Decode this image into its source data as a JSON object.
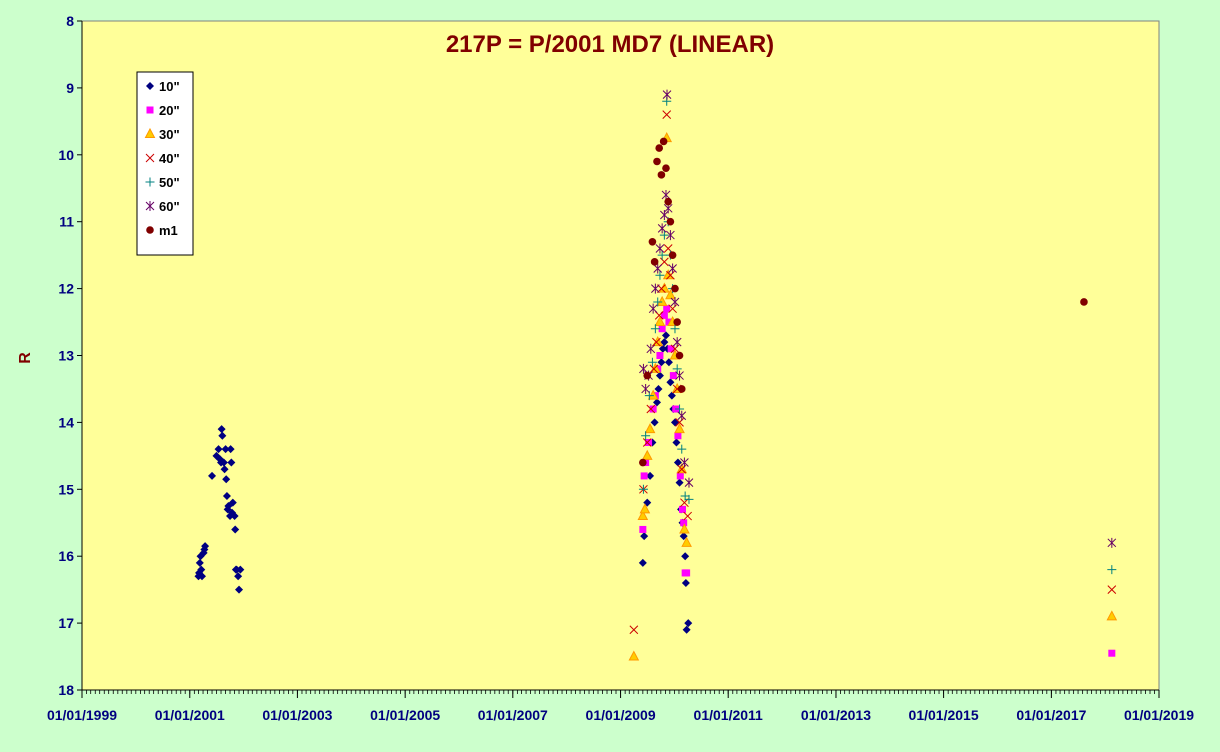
{
  "chart_data": {
    "type": "scatter",
    "title": "217P = P/2001 MD7 (LINEAR)",
    "xlabel": "",
    "ylabel": "R",
    "y_reversed": true,
    "ylim": [
      8,
      18
    ],
    "y_ticks": [
      "8",
      "9",
      "10",
      "11",
      "12",
      "13",
      "14",
      "15",
      "16",
      "17",
      "18"
    ],
    "x_ticks": [
      "01/01/1999",
      "01/01/2001",
      "01/01/2003",
      "01/01/2005",
      "01/01/2007",
      "01/01/2009",
      "01/01/2011",
      "01/01/2013",
      "01/01/2015",
      "01/01/2017",
      "01/01/2019"
    ],
    "xlim": [
      "1999-01-01",
      "2019-01-01"
    ],
    "grid": false,
    "legend_position": "top-left",
    "colors": {
      "plot_bg": "#ffff99",
      "page_bg": "#ccffcc",
      "title": "#800000",
      "axis_text": "#000080"
    },
    "series": [
      {
        "name": "10\"",
        "marker": "diamond",
        "color": "#000080",
        "points": [
          [
            "2001-03-01",
            16.3
          ],
          [
            "2001-03-05",
            16.25
          ],
          [
            "2001-03-10",
            16.1
          ],
          [
            "2001-03-15",
            16.0
          ],
          [
            "2001-03-20",
            16.2
          ],
          [
            "2001-03-25",
            16.3
          ],
          [
            "2001-04-05",
            15.95
          ],
          [
            "2001-04-10",
            15.9
          ],
          [
            "2001-04-15",
            15.85
          ],
          [
            "2001-06-01",
            14.8
          ],
          [
            "2001-07-01",
            14.5
          ],
          [
            "2001-07-15",
            14.4
          ],
          [
            "2001-07-25",
            14.55
          ],
          [
            "2001-08-01",
            14.6
          ],
          [
            "2001-08-05",
            14.1
          ],
          [
            "2001-08-10",
            14.2
          ],
          [
            "2001-08-20",
            14.6
          ],
          [
            "2001-08-25",
            14.7
          ],
          [
            "2001-09-01",
            14.4
          ],
          [
            "2001-09-05",
            14.85
          ],
          [
            "2001-09-10",
            15.1
          ],
          [
            "2001-09-15",
            15.3
          ],
          [
            "2001-09-20",
            15.25
          ],
          [
            "2001-10-01",
            15.4
          ],
          [
            "2001-10-05",
            14.4
          ],
          [
            "2001-10-10",
            14.6
          ],
          [
            "2001-10-15",
            15.35
          ],
          [
            "2001-10-20",
            15.2
          ],
          [
            "2001-11-01",
            15.4
          ],
          [
            "2001-11-05",
            15.6
          ],
          [
            "2001-11-10",
            16.2
          ],
          [
            "2001-11-15",
            16.2
          ],
          [
            "2001-11-25",
            16.3
          ],
          [
            "2001-12-01",
            16.5
          ],
          [
            "2001-12-10",
            16.2
          ],
          [
            "2009-06-01",
            16.1
          ],
          [
            "2009-06-10",
            15.7
          ],
          [
            "2009-07-01",
            15.2
          ],
          [
            "2009-07-20",
            14.8
          ],
          [
            "2009-08-05",
            14.3
          ],
          [
            "2009-08-20",
            14.0
          ],
          [
            "2009-09-05",
            13.7
          ],
          [
            "2009-09-15",
            13.5
          ],
          [
            "2009-09-25",
            13.3
          ],
          [
            "2009-10-05",
            13.1
          ],
          [
            "2009-10-15",
            12.9
          ],
          [
            "2009-10-25",
            12.8
          ],
          [
            "2009-11-05",
            12.7
          ],
          [
            "2009-11-15",
            12.9
          ],
          [
            "2009-11-25",
            13.1
          ],
          [
            "2009-12-05",
            13.4
          ],
          [
            "2009-12-15",
            13.6
          ],
          [
            "2009-12-25",
            13.8
          ],
          [
            "2010-01-05",
            14.0
          ],
          [
            "2010-01-15",
            14.3
          ],
          [
            "2010-01-25",
            14.6
          ],
          [
            "2010-02-05",
            14.9
          ],
          [
            "2010-02-15",
            15.3
          ],
          [
            "2010-02-25",
            15.5
          ],
          [
            "2010-03-05",
            15.7
          ],
          [
            "2010-03-15",
            16.0
          ],
          [
            "2010-03-20",
            16.4
          ],
          [
            "2010-03-25",
            17.1
          ],
          [
            "2010-04-05",
            17.0
          ]
        ]
      },
      {
        "name": "20\"",
        "marker": "square",
        "color": "#ff00ff",
        "points": [
          [
            "2009-06-01",
            15.6
          ],
          [
            "2009-06-10",
            14.8
          ],
          [
            "2009-06-20",
            14.6
          ],
          [
            "2009-07-10",
            14.3
          ],
          [
            "2009-08-10",
            13.8
          ],
          [
            "2009-08-25",
            13.6
          ],
          [
            "2009-09-10",
            13.2
          ],
          [
            "2009-09-25",
            13.0
          ],
          [
            "2009-10-10",
            12.6
          ],
          [
            "2009-10-25",
            12.4
          ],
          [
            "2009-11-10",
            12.3
          ],
          [
            "2009-11-25",
            12.5
          ],
          [
            "2009-12-10",
            12.9
          ],
          [
            "2009-12-25",
            13.3
          ],
          [
            "2010-01-10",
            13.8
          ],
          [
            "2010-01-25",
            14.2
          ],
          [
            "2010-02-10",
            14.8
          ],
          [
            "2010-02-25",
            15.3
          ],
          [
            "2010-03-05",
            15.5
          ],
          [
            "2010-03-15",
            16.25
          ],
          [
            "2010-03-25",
            16.25
          ],
          [
            "2018-02-15",
            17.45
          ]
        ]
      },
      {
        "name": "30\"",
        "marker": "triangle",
        "color": "#ff9900",
        "points": [
          [
            "2009-04-01",
            17.5
          ],
          [
            "2009-06-01",
            15.4
          ],
          [
            "2009-06-15",
            15.3
          ],
          [
            "2009-07-01",
            14.5
          ],
          [
            "2009-07-20",
            14.1
          ],
          [
            "2009-08-10",
            13.6
          ],
          [
            "2009-08-25",
            13.2
          ],
          [
            "2009-09-10",
            12.8
          ],
          [
            "2009-09-25",
            12.5
          ],
          [
            "2009-10-10",
            12.2
          ],
          [
            "2009-10-25",
            12.0
          ],
          [
            "2009-11-10",
            9.75
          ],
          [
            "2009-11-20",
            11.8
          ],
          [
            "2009-12-05",
            12.1
          ],
          [
            "2009-12-20",
            12.5
          ],
          [
            "2010-01-05",
            13.0
          ],
          [
            "2010-01-20",
            13.5
          ],
          [
            "2010-02-05",
            14.1
          ],
          [
            "2010-02-20",
            14.7
          ],
          [
            "2010-03-10",
            15.6
          ],
          [
            "2010-03-25",
            15.8
          ],
          [
            "2018-02-15",
            16.9
          ]
        ]
      },
      {
        "name": "40\"",
        "marker": "x",
        "color": "#cc0000",
        "points": [
          [
            "2009-04-01",
            17.1
          ],
          [
            "2009-06-05",
            15.0
          ],
          [
            "2009-07-01",
            14.3
          ],
          [
            "2009-07-25",
            13.8
          ],
          [
            "2009-08-15",
            13.2
          ],
          [
            "2009-09-01",
            12.8
          ],
          [
            "2009-09-20",
            12.4
          ],
          [
            "2009-10-05",
            12.0
          ],
          [
            "2009-10-25",
            11.6
          ],
          [
            "2009-11-10",
            9.4
          ],
          [
            "2009-11-20",
            11.4
          ],
          [
            "2009-12-05",
            11.8
          ],
          [
            "2009-12-20",
            12.3
          ],
          [
            "2010-01-05",
            12.9
          ],
          [
            "2010-01-20",
            13.5
          ],
          [
            "2010-02-05",
            14.0
          ],
          [
            "2010-02-20",
            14.7
          ],
          [
            "2010-03-10",
            15.2
          ],
          [
            "2010-04-01",
            15.4
          ],
          [
            "2018-02-15",
            16.5
          ]
        ]
      },
      {
        "name": "50\"",
        "marker": "plus",
        "color": "#008080",
        "points": [
          [
            "2009-06-05",
            15.0
          ],
          [
            "2009-06-20",
            14.2
          ],
          [
            "2009-07-15",
            13.6
          ],
          [
            "2009-08-05",
            13.1
          ],
          [
            "2009-08-25",
            12.6
          ],
          [
            "2009-09-10",
            12.2
          ],
          [
            "2009-09-25",
            11.8
          ],
          [
            "2009-10-10",
            11.5
          ],
          [
            "2009-10-25",
            11.2
          ],
          [
            "2009-11-10",
            9.2
          ],
          [
            "2009-11-20",
            11.0
          ],
          [
            "2009-12-05",
            11.5
          ],
          [
            "2009-12-20",
            12.0
          ],
          [
            "2010-01-05",
            12.6
          ],
          [
            "2010-01-20",
            13.2
          ],
          [
            "2010-02-05",
            13.8
          ],
          [
            "2010-02-20",
            14.4
          ],
          [
            "2010-03-15",
            15.1
          ],
          [
            "2010-04-10",
            15.15
          ],
          [
            "2018-02-15",
            16.2
          ]
        ]
      },
      {
        "name": "60\"",
        "marker": "star",
        "color": "#660066",
        "points": [
          [
            "2009-06-05",
            13.2
          ],
          [
            "2009-06-20",
            13.5
          ],
          [
            "2009-07-10",
            13.3
          ],
          [
            "2009-07-25",
            12.9
          ],
          [
            "2009-08-10",
            12.3
          ],
          [
            "2009-08-25",
            12.0
          ],
          [
            "2009-09-10",
            11.7
          ],
          [
            "2009-09-25",
            11.4
          ],
          [
            "2009-10-10",
            11.1
          ],
          [
            "2009-10-25",
            10.9
          ],
          [
            "2009-11-05",
            10.6
          ],
          [
            "2009-11-12",
            9.1
          ],
          [
            "2009-11-20",
            10.8
          ],
          [
            "2009-12-05",
            11.2
          ],
          [
            "2009-12-20",
            11.7
          ],
          [
            "2010-01-05",
            12.2
          ],
          [
            "2010-01-20",
            12.8
          ],
          [
            "2010-02-05",
            13.3
          ],
          [
            "2010-02-20",
            13.9
          ],
          [
            "2010-03-10",
            14.6
          ],
          [
            "2010-04-10",
            14.9
          ],
          [
            "2018-02-15",
            15.8
          ]
        ]
      },
      {
        "name": "m1",
        "marker": "circle",
        "color": "#800000",
        "points": [
          [
            "2009-06-01",
            14.6
          ],
          [
            "2009-07-01",
            13.3
          ],
          [
            "2009-08-05",
            11.3
          ],
          [
            "2009-08-20",
            11.6
          ],
          [
            "2009-09-05",
            10.1
          ],
          [
            "2009-09-20",
            9.9
          ],
          [
            "2009-10-05",
            10.3
          ],
          [
            "2009-10-20",
            9.8
          ],
          [
            "2009-11-05",
            10.2
          ],
          [
            "2009-11-20",
            10.7
          ],
          [
            "2009-12-05",
            11.0
          ],
          [
            "2009-12-20",
            11.5
          ],
          [
            "2010-01-05",
            12.0
          ],
          [
            "2010-01-20",
            12.5
          ],
          [
            "2010-02-05",
            13.0
          ],
          [
            "2010-02-20",
            13.5
          ],
          [
            "2017-08-10",
            12.2
          ]
        ]
      }
    ]
  }
}
